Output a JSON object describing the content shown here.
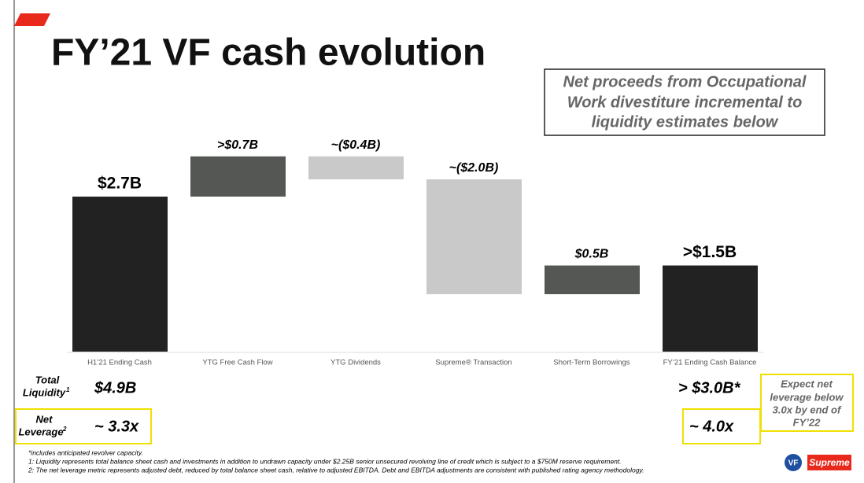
{
  "chart_data": {
    "type": "waterfall",
    "title": "FY’21 VF cash evolution",
    "callout": [
      "Net proceeds from Occupational",
      "Work divestiture incremental to",
      "liquidity estimates below"
    ],
    "categories": [
      "H1’21 Ending Cash",
      "YTG Free Cash Flow",
      "YTG Dividends",
      "Supreme® Transaction",
      "Short-Term Borrowings",
      "FY’21 Ending Cash Balance"
    ],
    "values": [
      2.7,
      0.7,
      -0.4,
      -2.0,
      0.5,
      1.5
    ],
    "value_labels": [
      "$2.7B",
      ">$0.7B",
      "~($0.4B)",
      "~($2.0B)",
      "$0.5B",
      ">$1.5B"
    ],
    "measure": [
      "absolute",
      "relative",
      "relative",
      "relative",
      "relative",
      "total"
    ],
    "colors": [
      "#222222",
      "#555755",
      "#c9c9c9",
      "#c9c9c9",
      "#555755",
      "#222222"
    ],
    "rows": [
      {
        "label": [
          "Total",
          "Liquidity"
        ],
        "sup": "1",
        "start": "$4.9B",
        "end": "> $3.0B*"
      },
      {
        "label": [
          "Net",
          "Leverage"
        ],
        "sup": "2",
        "start": "~ 3.3x",
        "end": "~ 4.0x"
      }
    ],
    "note": [
      "Expect net",
      "leverage below",
      "3.0x by end of",
      "FY’22"
    ],
    "footnotes": [
      "*includes anticipated revolver capacity.",
      "1: Liquidity represents total balance sheet cash and investments in addition to undrawn capacity under $2.25B senior unsecured revolving line of credit which is subject to a $750M reserve requirement.",
      "2: The net leverage metric represents adjusted debt, reduced by total balance sheet cash, relative to adjusted EBITDA. Debt and EBITDA adjustments are consistent with published rating agency methodology."
    ],
    "logos": [
      "VF",
      "Supreme"
    ]
  }
}
